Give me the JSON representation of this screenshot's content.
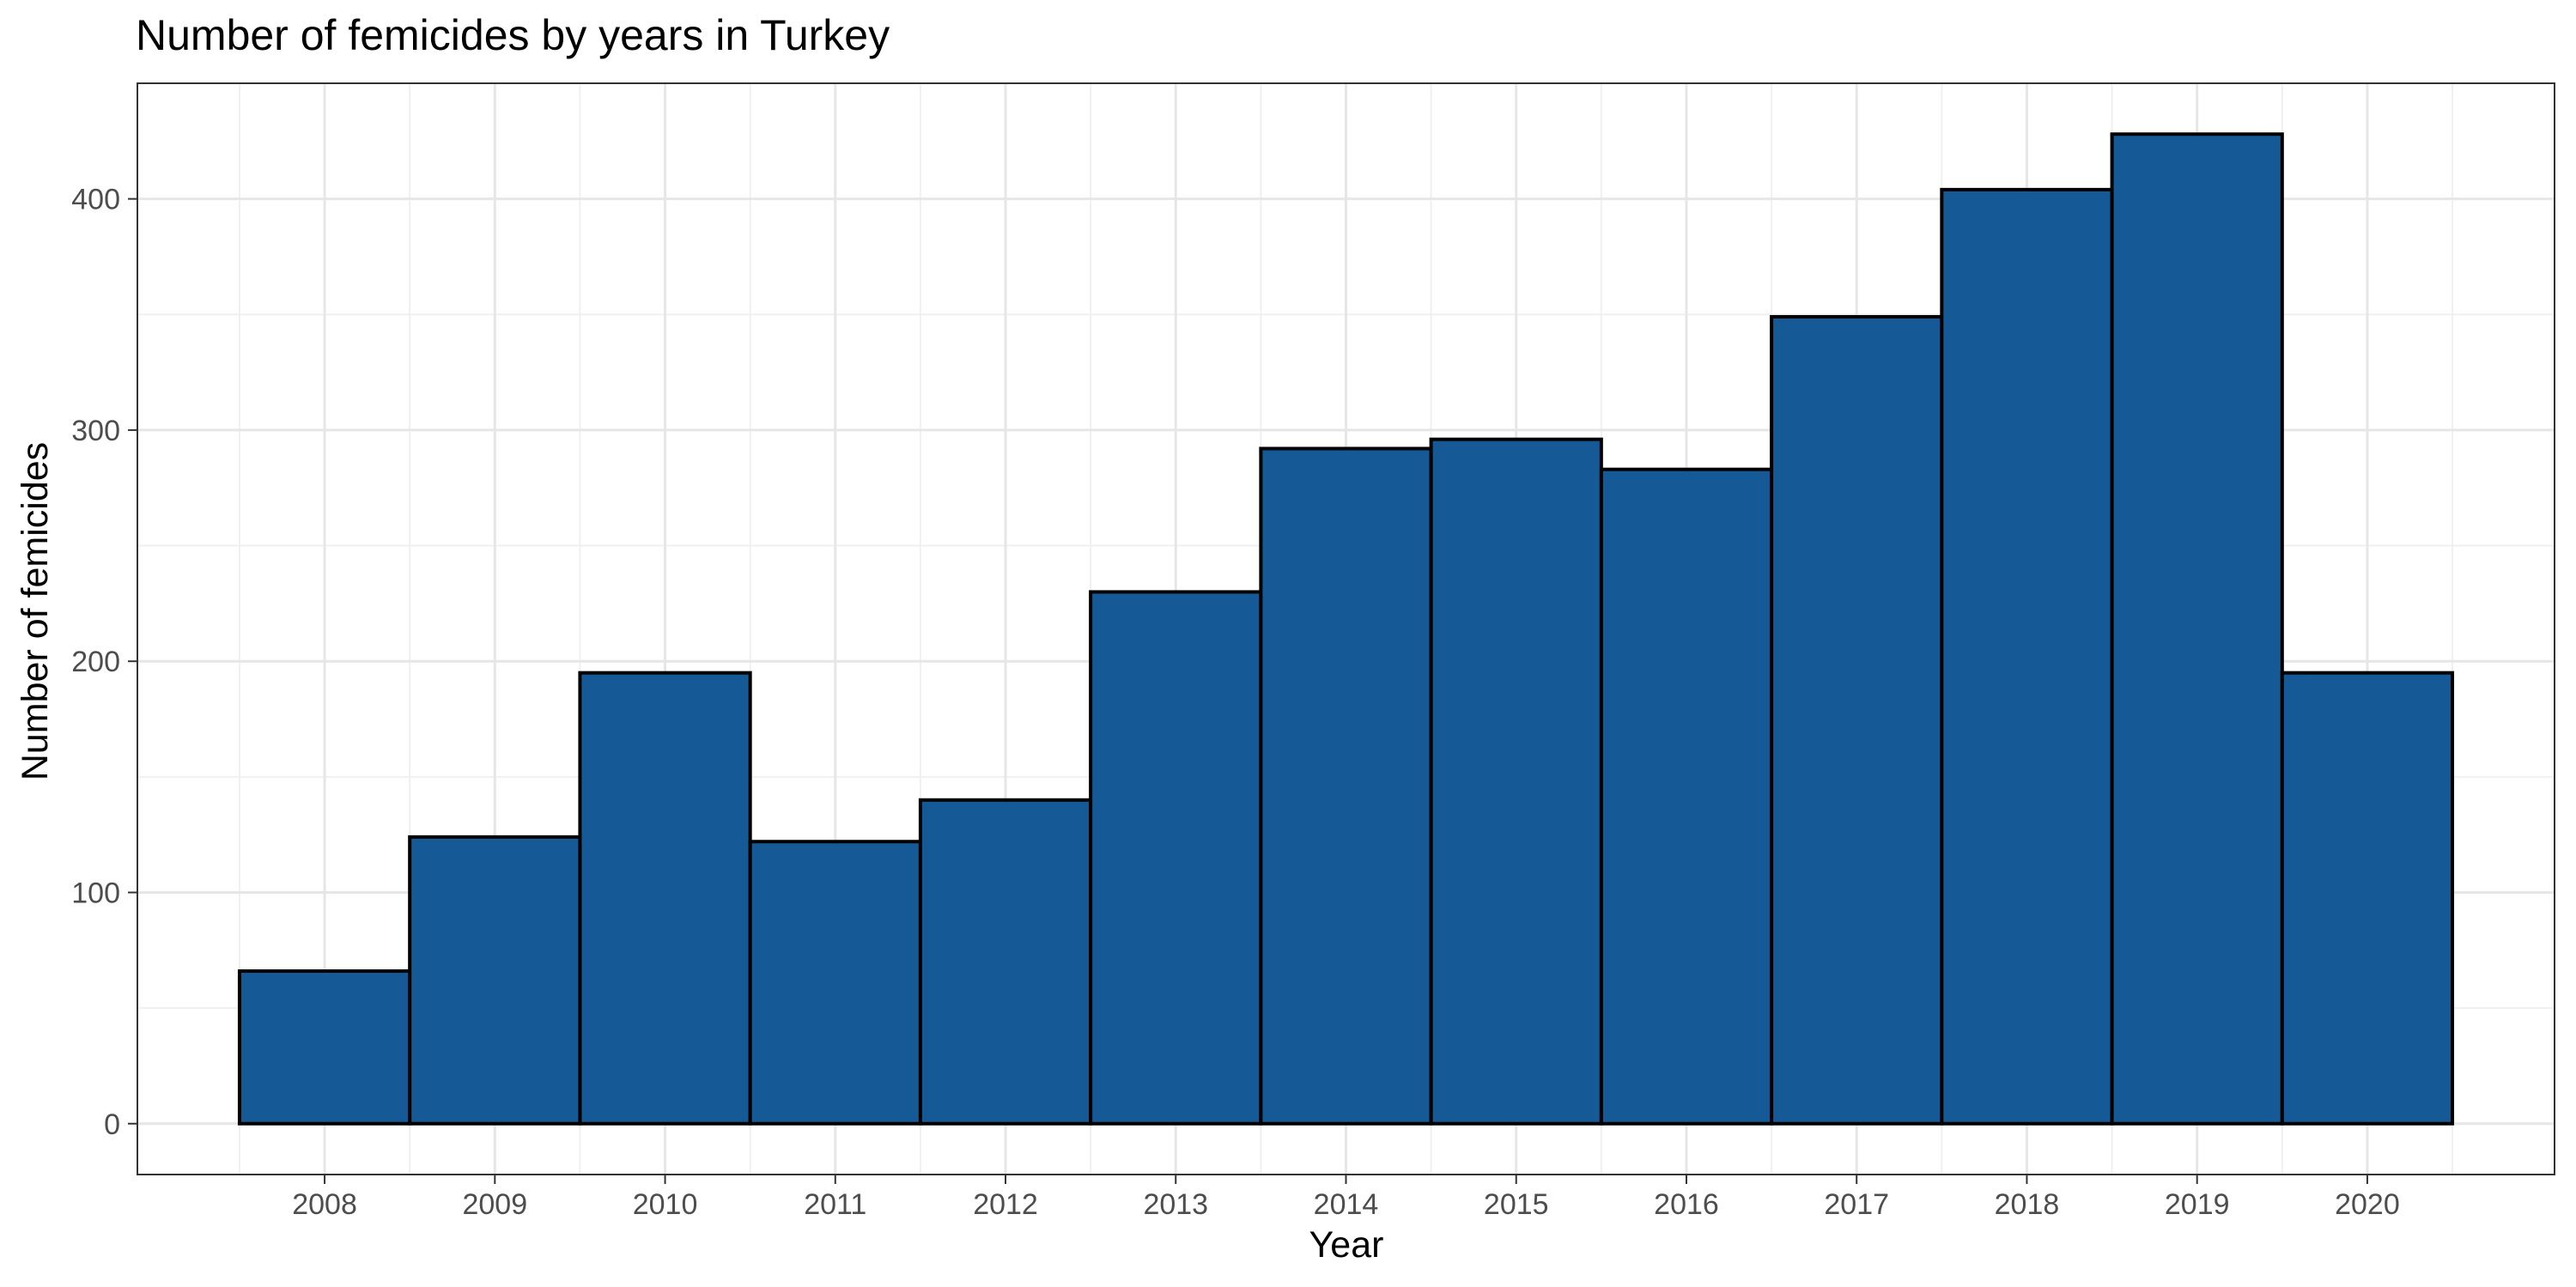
{
  "chart_data": {
    "type": "bar",
    "title": "Number of femicides by years in Turkey",
    "xlabel": "Year",
    "ylabel": "Number of femicides",
    "categories": [
      "2008",
      "2009",
      "2010",
      "2011",
      "2012",
      "2013",
      "2014",
      "2015",
      "2016",
      "2017",
      "2018",
      "2019",
      "2020"
    ],
    "values": [
      66,
      124,
      195,
      122,
      140,
      230,
      292,
      296,
      283,
      349,
      404,
      428,
      195
    ],
    "yticks": [
      0,
      100,
      200,
      300,
      400
    ],
    "ylim": [
      -22,
      450
    ],
    "grid": true,
    "legend": "none",
    "colors": {
      "bar_fill": "#155a96",
      "bar_stroke": "#000000",
      "grid_major": "#e6e6e6",
      "grid_minor": "#f0f0f0",
      "panel_border": "#333333",
      "tick_text": "#4d4d4d"
    }
  }
}
